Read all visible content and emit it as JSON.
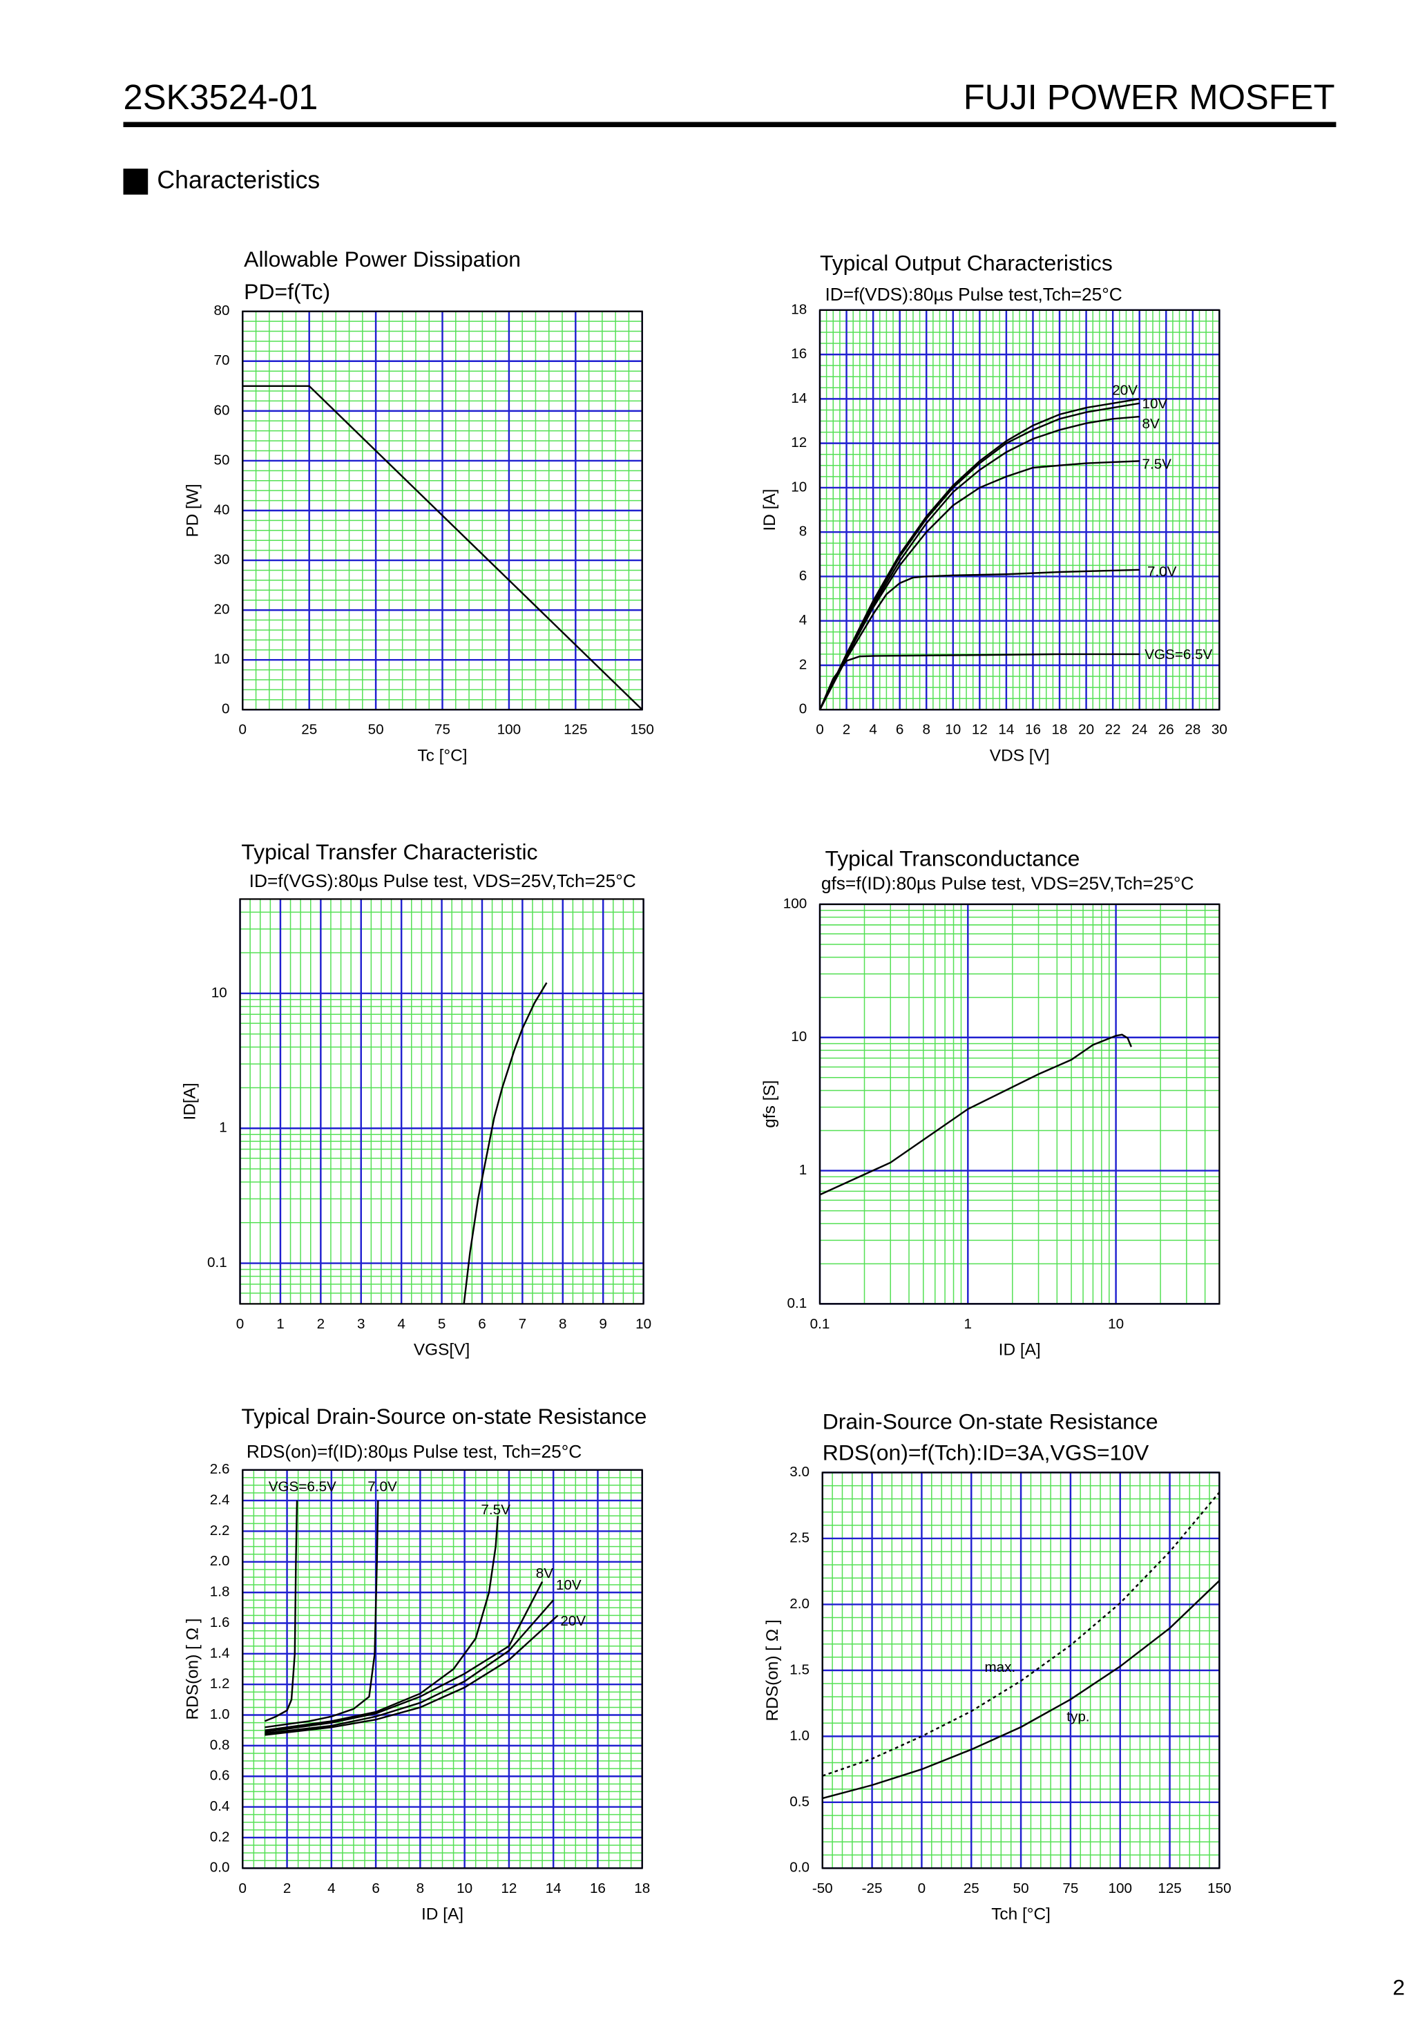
{
  "header": {
    "part": "2SK3524-01",
    "brand": "FUJI POWER MOSFET"
  },
  "section": "Characteristics",
  "page_number": "2",
  "chart_data": [
    {
      "type": "line",
      "title": "Allowable Power Dissipation",
      "subtitle": "PD=f(Tc)",
      "x_label": "Tc [°C]",
      "y_label": "PD [W]",
      "grid": true,
      "xlim": [
        0,
        150
      ],
      "xticks": [
        0,
        25,
        50,
        75,
        100,
        125,
        150
      ],
      "ylim": [
        0,
        80
      ],
      "yticks": [
        0,
        10,
        20,
        30,
        40,
        50,
        60,
        70,
        80
      ],
      "series": [
        {
          "color": "#000000",
          "x": [
            0,
            25,
            150
          ],
          "values": [
            65,
            65,
            0
          ]
        }
      ]
    },
    {
      "type": "line",
      "title": "Typical Output Characteristics",
      "subtitle": "ID=f(VDS):80µs Pulse test,Tch=25°C",
      "x_label": "VDS [V]",
      "y_label": "ID [A]",
      "grid": true,
      "xlim": [
        0,
        30
      ],
      "xticks": [
        0,
        2,
        4,
        6,
        8,
        10,
        12,
        14,
        16,
        18,
        20,
        22,
        24,
        26,
        28,
        30
      ],
      "ylim": [
        0,
        18
      ],
      "yticks": [
        0,
        2,
        4,
        6,
        8,
        10,
        12,
        14,
        16,
        18
      ],
      "series": [
        {
          "name": "20V",
          "color": "#000000",
          "x": [
            0,
            2,
            4,
            6,
            8,
            10,
            12,
            14,
            16,
            18,
            20,
            22,
            24
          ],
          "values": [
            0,
            2.5,
            4.9,
            7.0,
            8.7,
            10.1,
            11.2,
            12.1,
            12.8,
            13.3,
            13.6,
            13.8,
            14.0
          ]
        },
        {
          "name": "10V",
          "color": "#000000",
          "x": [
            0,
            2,
            4,
            6,
            8,
            10,
            12,
            14,
            16,
            18,
            20,
            22,
            24
          ],
          "values": [
            0,
            2.5,
            4.8,
            6.9,
            8.6,
            10.0,
            11.1,
            12.0,
            12.6,
            13.1,
            13.4,
            13.6,
            13.8
          ]
        },
        {
          "name": "8V",
          "color": "#000000",
          "x": [
            0,
            2,
            4,
            6,
            8,
            10,
            12,
            14,
            16,
            18,
            20,
            22,
            24
          ],
          "values": [
            0,
            2.4,
            4.7,
            6.7,
            8.4,
            9.8,
            10.8,
            11.6,
            12.2,
            12.6,
            12.9,
            13.1,
            13.2
          ]
        },
        {
          "name": "7.5V",
          "color": "#000000",
          "x": [
            0,
            2,
            4,
            6,
            8,
            10,
            12,
            14,
            16,
            18,
            20,
            22,
            24
          ],
          "values": [
            0,
            2.4,
            4.6,
            6.5,
            8.0,
            9.2,
            10.0,
            10.5,
            10.9,
            11.0,
            11.1,
            11.15,
            11.2
          ]
        },
        {
          "name": "7.0V",
          "color": "#000000",
          "x": [
            0,
            2,
            4,
            5,
            6,
            7,
            8,
            10,
            14,
            18,
            24
          ],
          "values": [
            0,
            2.3,
            4.3,
            5.2,
            5.7,
            5.95,
            6.0,
            6.05,
            6.1,
            6.2,
            6.3
          ]
        },
        {
          "name": "VGS=6.5V",
          "color": "#000000",
          "x": [
            0,
            1,
            2,
            3,
            4,
            10,
            18,
            24
          ],
          "values": [
            0,
            1.4,
            2.2,
            2.4,
            2.42,
            2.45,
            2.5,
            2.5
          ]
        }
      ]
    },
    {
      "type": "line",
      "title": "Typical Transfer Characteristic",
      "subtitle": "ID=f(VGS):80µs Pulse test, VDS=25V,Tch=25°C",
      "x_label": "VGS[V]",
      "y_label": "ID[A]",
      "grid": true,
      "ylog": true,
      "xlim": [
        0,
        10
      ],
      "xticks": [
        0,
        1,
        2,
        3,
        4,
        5,
        6,
        7,
        8,
        9,
        10
      ],
      "ylim": [
        0.05,
        50
      ],
      "yticks": [
        0.1,
        1,
        10
      ],
      "series": [
        {
          "color": "#000000",
          "x": [
            5.55,
            5.7,
            5.9,
            6.1,
            6.3,
            6.5,
            6.8,
            7.0,
            7.3,
            7.6
          ],
          "values": [
            0.05,
            0.12,
            0.3,
            0.6,
            1.2,
            2,
            3.8,
            5.5,
            8.5,
            12
          ]
        }
      ]
    },
    {
      "type": "line",
      "title": "Typical Transconductance",
      "subtitle": "gfs=f(ID):80µs Pulse test, VDS=25V,Tch=25°C",
      "x_label": "ID [A]",
      "y_label": "gfs [S]",
      "grid": true,
      "xlog": true,
      "ylog": true,
      "xlim": [
        0.1,
        50
      ],
      "xticks": [
        0.1,
        1,
        10
      ],
      "ylim": [
        0.1,
        100
      ],
      "yticks": [
        0.1,
        1,
        10,
        100
      ],
      "series": [
        {
          "color": "#000000",
          "x": [
            0.1,
            0.3,
            1,
            3,
            5,
            7,
            10,
            11,
            12,
            12.7
          ],
          "values": [
            0.66,
            1.15,
            2.9,
            5.3,
            6.8,
            8.8,
            10.3,
            10.5,
            9.9,
            8.5
          ]
        }
      ]
    },
    {
      "type": "line",
      "title": "Typical Drain-Source on-state Resistance",
      "subtitle": "RDS(on)=f(ID):80µs Pulse test, Tch=25°C",
      "x_label": "ID [A]",
      "y_label": "RDS(on) [ Ω ]",
      "grid": true,
      "xlim": [
        0,
        18
      ],
      "xticks": [
        0,
        2,
        4,
        6,
        8,
        10,
        12,
        14,
        16,
        18
      ],
      "ylim": [
        0,
        2.6
      ],
      "yticks": [
        {
          "value": 0,
          "label": "0.0"
        },
        0.2,
        0.4,
        0.6,
        0.8,
        {
          "value": 1,
          "label": "1.0"
        },
        1.2,
        1.4,
        1.6,
        1.8,
        {
          "value": 2,
          "label": "2.0"
        },
        2.2,
        2.4,
        2.6
      ],
      "series": [
        {
          "name": "VGS=6.5V",
          "color": "#000000",
          "x": [
            1,
            1.5,
            2,
            2.2,
            2.35,
            2.4,
            2.45
          ],
          "values": [
            0.96,
            0.99,
            1.03,
            1.1,
            1.4,
            2.0,
            2.4
          ]
        },
        {
          "name": "7.0V",
          "color": "#000000",
          "x": [
            1,
            2,
            3,
            4,
            5,
            5.7,
            5.95,
            6.05,
            6.1
          ],
          "values": [
            0.92,
            0.94,
            0.96,
            0.99,
            1.04,
            1.12,
            1.4,
            2.0,
            2.4
          ]
        },
        {
          "name": "7.5V",
          "color": "#000000",
          "x": [
            1,
            4,
            6,
            8,
            9.5,
            10.5,
            11.1,
            11.4,
            11.5
          ],
          "values": [
            0.9,
            0.96,
            1.02,
            1.14,
            1.3,
            1.5,
            1.8,
            2.1,
            2.3
          ]
        },
        {
          "name": "8V",
          "color": "#000000",
          "x": [
            1,
            4,
            6,
            8,
            10,
            12,
            13.5
          ],
          "values": [
            0.89,
            0.95,
            1.01,
            1.12,
            1.27,
            1.45,
            1.87
          ]
        },
        {
          "name": "10V",
          "color": "#000000",
          "x": [
            1,
            4,
            6,
            8,
            10,
            12,
            14
          ],
          "values": [
            0.88,
            0.93,
            0.99,
            1.08,
            1.22,
            1.42,
            1.75
          ]
        },
        {
          "name": "20V",
          "color": "#000000",
          "x": [
            1,
            4,
            6,
            8,
            10,
            12,
            14.2
          ],
          "values": [
            0.87,
            0.92,
            0.97,
            1.05,
            1.18,
            1.36,
            1.65
          ]
        }
      ]
    },
    {
      "type": "line",
      "title": "Drain-Source On-state Resistance",
      "subtitle": "RDS(on)=f(Tch):ID=3A,VGS=10V",
      "x_label": "Tch [°C]",
      "y_label": "RDS(on) [ Ω ]",
      "grid": true,
      "xlim": [
        -50,
        150
      ],
      "xticks": [
        -50,
        -25,
        0,
        25,
        50,
        75,
        100,
        125,
        150
      ],
      "ylim": [
        0,
        3
      ],
      "yticks": [
        {
          "value": 0,
          "label": "0.0"
        },
        0.5,
        {
          "value": 1,
          "label": "1.0"
        },
        1.5,
        {
          "value": 2,
          "label": "2.0"
        },
        2.5,
        {
          "value": 3,
          "label": "3.0"
        }
      ],
      "series": [
        {
          "name": "max.",
          "color": "#000000",
          "style": "dotted",
          "x": [
            -50,
            -25,
            0,
            25,
            50,
            75,
            100,
            125,
            150
          ],
          "values": [
            0.7,
            0.83,
            1.0,
            1.19,
            1.42,
            1.69,
            2.01,
            2.4,
            2.85
          ]
        },
        {
          "name": "typ.",
          "color": "#000000",
          "x": [
            -50,
            -25,
            0,
            25,
            50,
            75,
            100,
            125,
            150
          ],
          "values": [
            0.53,
            0.63,
            0.75,
            0.9,
            1.07,
            1.28,
            1.53,
            1.82,
            2.18
          ]
        }
      ]
    }
  ]
}
